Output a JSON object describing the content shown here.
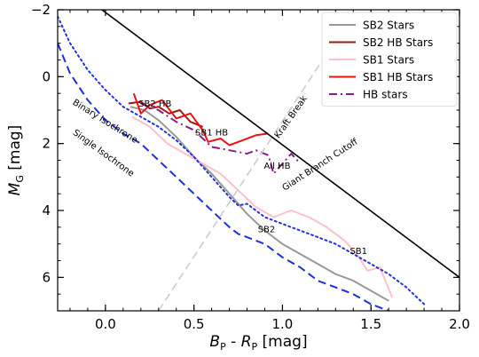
{
  "chart_data": {
    "type": "line",
    "xlabel": "B_P - R_P [mag]",
    "ylabel": "M_G [mag]",
    "xlim": [
      -0.27,
      2.0
    ],
    "ylim": [
      7.0,
      -2.0
    ],
    "y_inverted": true,
    "grid": false,
    "legend_placement": "top-right",
    "x_ticks": [
      0.0,
      0.5,
      1.0,
      1.5,
      2.0
    ],
    "x_tick_labels": [
      "0.0",
      "0.5",
      "1.0",
      "1.5",
      "2.0"
    ],
    "y_ticks": [
      -2,
      0,
      2,
      4,
      6
    ],
    "y_tick_labels": [
      "−2",
      "0",
      "2",
      "4",
      "6"
    ],
    "colors": {
      "sb2": "#999999",
      "sb2_hb": "#a31515",
      "sb1": "#ffc0cb",
      "sb1_hb": "#ee1111",
      "hb": "#8b1a8b",
      "binary_iso": "#2233dd",
      "single_iso": "#1a2fe0",
      "cutoff": "#000000",
      "kraft": "#cccccc"
    },
    "series": [
      {
        "name": "SB2 Stars",
        "key": "sb2",
        "style": "solid",
        "width": 2,
        "x": [
          0.14,
          0.22,
          0.3,
          0.4,
          0.5,
          0.6,
          0.7,
          0.8,
          0.9,
          1.0,
          1.1,
          1.2,
          1.3,
          1.4,
          1.5,
          1.6
        ],
        "y": [
          0.9,
          1.0,
          1.3,
          1.8,
          2.4,
          2.9,
          3.5,
          4.1,
          4.6,
          5.0,
          5.3,
          5.6,
          5.9,
          6.1,
          6.4,
          6.7
        ]
      },
      {
        "name": "SB2 HB Stars",
        "key": "sb2_hb",
        "style": "solid",
        "width": 2,
        "x": [
          0.13,
          0.2,
          0.25,
          0.3,
          0.36,
          0.42,
          0.48,
          0.55
        ],
        "y": [
          0.8,
          0.75,
          0.95,
          0.9,
          1.1,
          1.0,
          1.35,
          1.5
        ]
      },
      {
        "name": "SB1 Stars",
        "key": "sb1",
        "style": "solid",
        "width": 2,
        "x": [
          0.15,
          0.25,
          0.35,
          0.45,
          0.55,
          0.65,
          0.75,
          0.85,
          0.95,
          1.05,
          1.15,
          1.25,
          1.35,
          1.42,
          1.48,
          1.55,
          1.62
        ],
        "y": [
          1.2,
          1.5,
          2.0,
          2.3,
          2.6,
          2.9,
          3.4,
          3.9,
          4.2,
          4.0,
          4.2,
          4.5,
          4.9,
          5.3,
          5.8,
          5.7,
          6.6
        ]
      },
      {
        "name": "SB1 HB Stars",
        "key": "sb1_hb",
        "style": "solid",
        "width": 2,
        "x": [
          0.16,
          0.2,
          0.25,
          0.32,
          0.4,
          0.48,
          0.55,
          0.58,
          0.65,
          0.7,
          0.75,
          0.85,
          0.92
        ],
        "y": [
          0.5,
          1.1,
          0.85,
          0.7,
          1.25,
          1.1,
          1.6,
          1.95,
          1.85,
          2.05,
          1.95,
          1.75,
          1.7
        ]
      },
      {
        "name": "HB stars",
        "key": "hb",
        "style": "dashdot",
        "width": 2,
        "x": [
          0.2,
          0.3,
          0.4,
          0.5,
          0.6,
          0.7,
          0.8,
          0.85,
          0.92,
          0.95,
          1.0,
          1.05,
          1.1
        ],
        "y": [
          0.8,
          1.0,
          1.35,
          1.6,
          2.1,
          2.2,
          2.3,
          2.2,
          2.35,
          2.9,
          2.6,
          2.3,
          2.6
        ]
      },
      {
        "key": "binary_iso",
        "style": "dotted",
        "width": 2,
        "x": [
          -0.27,
          -0.2,
          -0.1,
          0.0,
          0.1,
          0.2,
          0.3,
          0.4,
          0.5,
          0.6,
          0.7,
          0.75,
          0.8,
          0.9,
          1.0,
          1.1,
          1.2,
          1.3,
          1.4,
          1.5,
          1.6,
          1.7,
          1.8
        ],
        "y": [
          -1.8,
          -1.0,
          -0.2,
          0.4,
          0.9,
          1.2,
          1.5,
          1.9,
          2.4,
          3.0,
          3.6,
          3.85,
          3.8,
          4.2,
          4.4,
          4.6,
          4.8,
          5.0,
          5.3,
          5.6,
          5.9,
          6.3,
          6.8
        ]
      },
      {
        "key": "single_iso",
        "style": "dashed",
        "width": 2,
        "x": [
          -0.27,
          -0.2,
          -0.1,
          0.0,
          0.1,
          0.2,
          0.3,
          0.4,
          0.5,
          0.6,
          0.7,
          0.75,
          0.8,
          0.9,
          1.0,
          1.1,
          1.2,
          1.3,
          1.4,
          1.5,
          1.6,
          1.65
        ],
        "y": [
          -1.0,
          -0.1,
          0.7,
          1.3,
          1.7,
          2.0,
          2.5,
          3.0,
          3.5,
          4.0,
          4.5,
          4.7,
          4.8,
          5.0,
          5.4,
          5.7,
          6.1,
          6.3,
          6.5,
          6.8,
          7.0,
          7.1
        ]
      },
      {
        "key": "cutoff",
        "style": "solid",
        "width": 1.6,
        "x": [
          -0.02,
          2.0
        ],
        "y": [
          -2.0,
          6.0
        ]
      },
      {
        "key": "kraft",
        "style": "dashed",
        "width": 1.6,
        "x": [
          0.3,
          1.35
        ],
        "y": [
          7.0,
          -1.5
        ]
      }
    ],
    "annotations": [
      {
        "text": "SB2 HB",
        "x": 0.28,
        "y": 0.9,
        "rotate": 0
      },
      {
        "text": "SB1 HB",
        "x": 0.6,
        "y": 1.75,
        "rotate": 0
      },
      {
        "text": "All HB",
        "x": 0.97,
        "y": 2.75,
        "rotate": 0
      },
      {
        "text": "SB2",
        "x": 0.91,
        "y": 4.65,
        "rotate": 0
      },
      {
        "text": "SB1",
        "x": 1.43,
        "y": 5.3,
        "rotate": 0
      },
      {
        "text": "Binary Isochrone",
        "x": -0.01,
        "y": 1.4,
        "rotate": 32
      },
      {
        "text": "Single Isochrone",
        "x": -0.02,
        "y": 2.35,
        "rotate": 36
      },
      {
        "text": "Kraft Break",
        "x": 1.06,
        "y": 1.25,
        "rotate": -55
      },
      {
        "text": "Giant Branch Cutoff",
        "x": 1.22,
        "y": 2.7,
        "rotate": -33
      }
    ]
  }
}
